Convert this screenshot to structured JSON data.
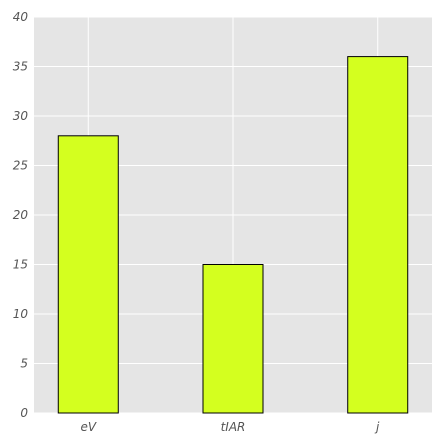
{
  "chart_data": {
    "type": "bar",
    "categories": [
      "eV",
      "tIAR",
      "j"
    ],
    "values": [
      28,
      15,
      36
    ],
    "ylim": [
      0,
      40
    ],
    "yticks": [
      0,
      5,
      10,
      15,
      20,
      25,
      30,
      35,
      40
    ],
    "grid": true,
    "legend": "none",
    "bar_color": "#d4ff1f",
    "bar_edge_color": "#000000",
    "background_color": "#e5e5e5",
    "grid_color": "#ffffff"
  }
}
